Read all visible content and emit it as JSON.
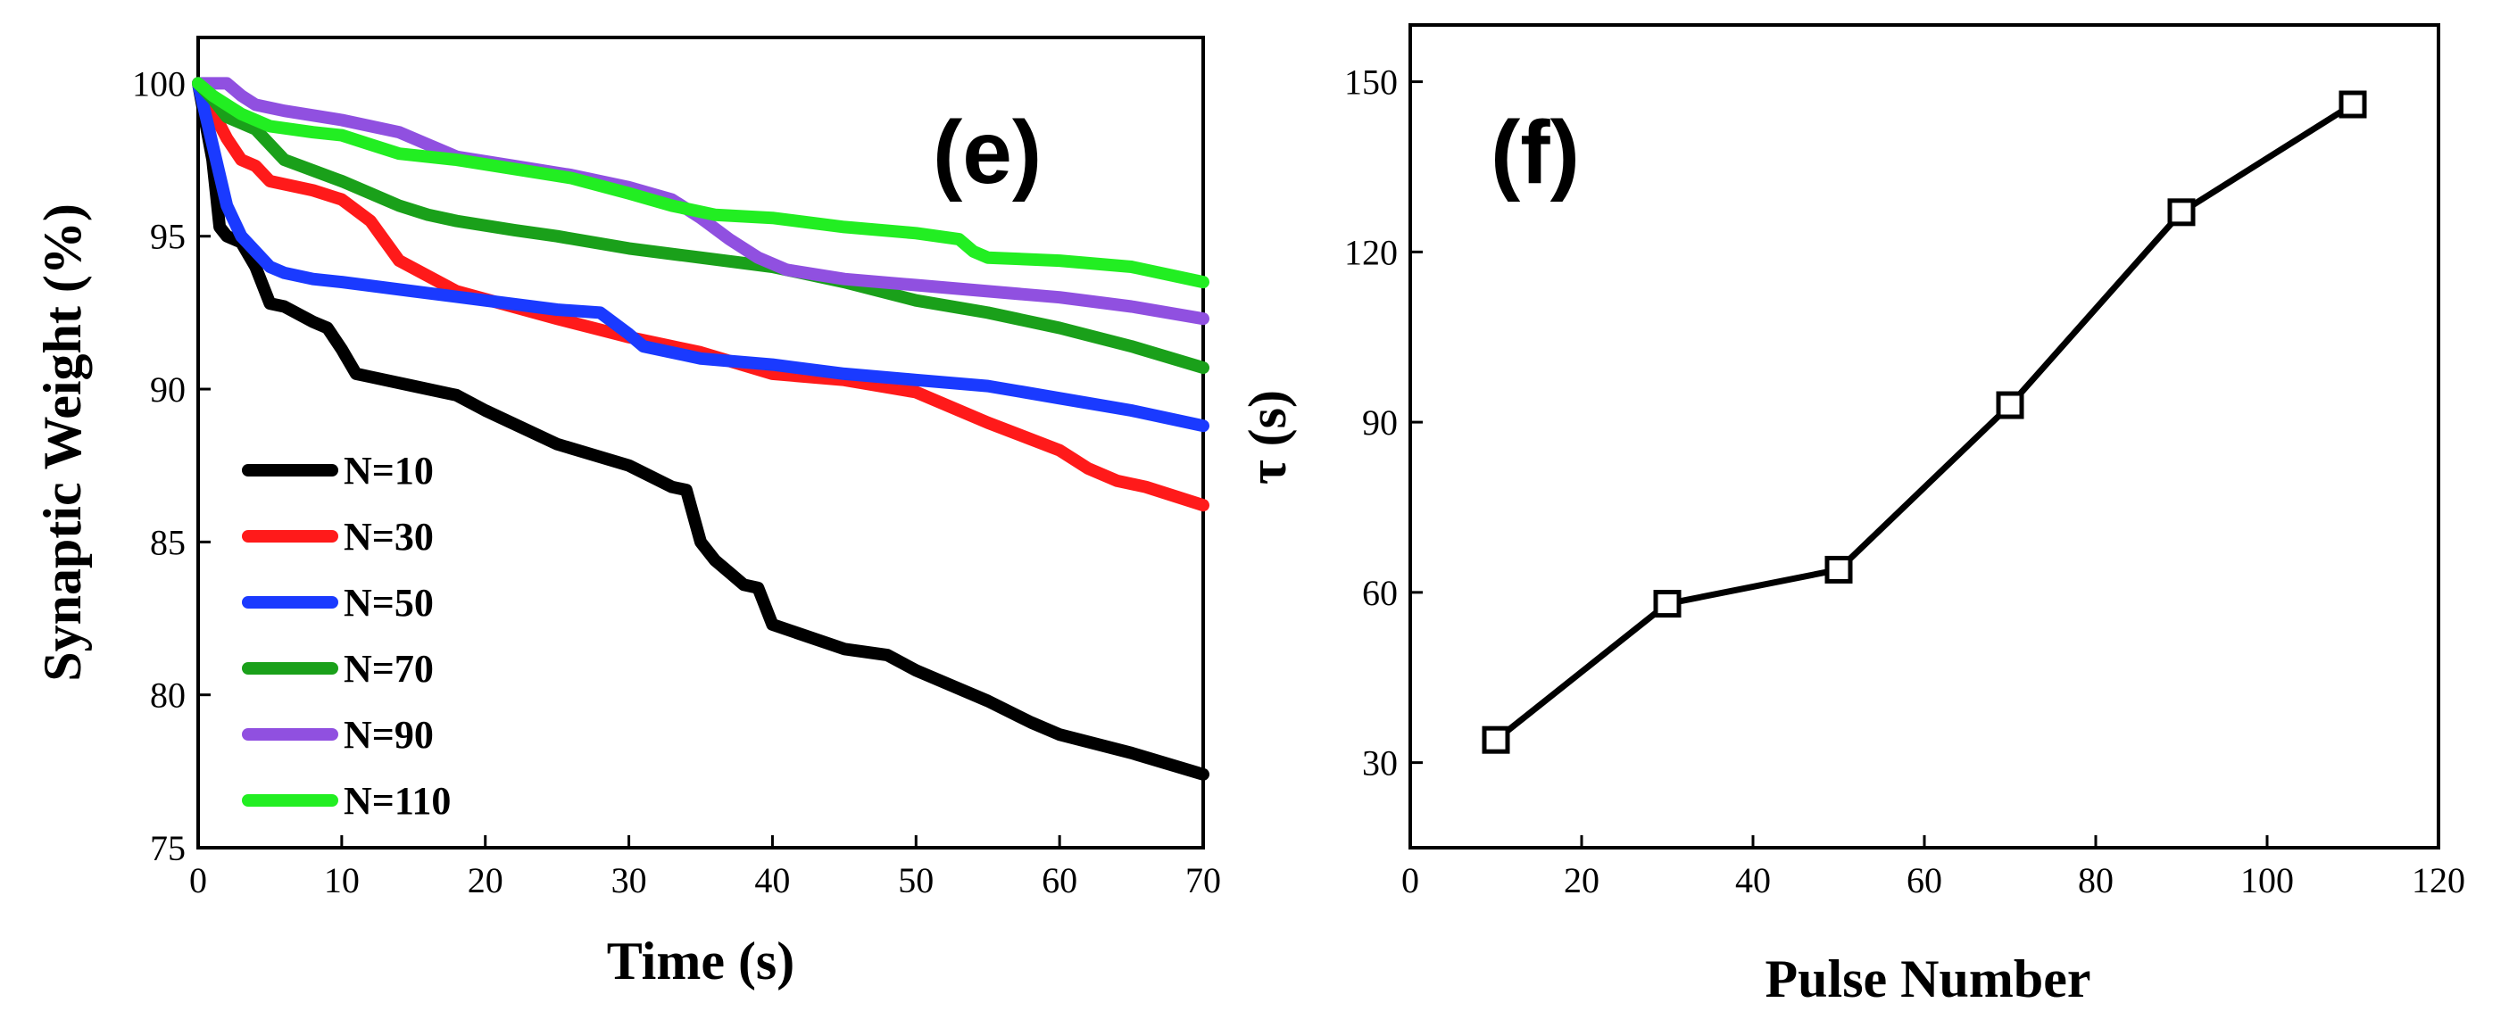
{
  "chart_data": [
    {
      "panel": "(e)",
      "type": "line",
      "title": "",
      "xlabel": "Time (s)",
      "ylabel": "Synaptic Weight (%)",
      "xlim": [
        0,
        70
      ],
      "ylim": [
        75,
        101.5
      ],
      "xticks": [
        0,
        10,
        20,
        30,
        40,
        50,
        60,
        70
      ],
      "yticks": [
        75,
        80,
        85,
        90,
        95,
        100
      ],
      "legend_position": "bottom-left",
      "series": [
        {
          "name": "N=10",
          "color": "#000000",
          "x": [
            0,
            1,
            1.5,
            2,
            3,
            4,
            5,
            6,
            8,
            9,
            10,
            11,
            12,
            15,
            18,
            20,
            25,
            30,
            33,
            34,
            35,
            36,
            37,
            38,
            39,
            40,
            45,
            48,
            50,
            55,
            58,
            60,
            65,
            70
          ],
          "y": [
            100,
            97.5,
            95.3,
            95,
            94.8,
            94,
            92.8,
            92.7,
            92.2,
            92,
            91.3,
            90.5,
            90.4,
            90.1,
            89.8,
            89.3,
            88.2,
            87.5,
            86.8,
            86.7,
            85,
            84.4,
            84,
            83.6,
            83.5,
            82.3,
            81.5,
            81.3,
            80.8,
            79.8,
            79.1,
            78.7,
            78.1,
            77.4
          ]
        },
        {
          "name": "N=30",
          "color": "#ff1a1a",
          "x": [
            0,
            2,
            3,
            4,
            5,
            8,
            10,
            12,
            14,
            18,
            25,
            30,
            35,
            40,
            45,
            50,
            55,
            60,
            62,
            64,
            66,
            70
          ],
          "y": [
            100,
            98.2,
            97.5,
            97.3,
            96.8,
            96.5,
            96.2,
            95.5,
            94.2,
            93.2,
            92.3,
            91.7,
            91.2,
            90.5,
            90.3,
            89.9,
            88.9,
            88,
            87.4,
            87,
            86.8,
            86.2
          ]
        },
        {
          "name": "N=50",
          "color": "#1a3aff",
          "x": [
            0,
            1,
            2,
            3,
            4,
            5,
            6,
            8,
            10,
            15,
            20,
            25,
            28,
            30,
            31,
            35,
            40,
            45,
            50,
            55,
            60,
            65,
            70
          ],
          "y": [
            100,
            98,
            96,
            95,
            94.5,
            94,
            93.8,
            93.6,
            93.5,
            93.2,
            92.9,
            92.6,
            92.5,
            91.8,
            91.4,
            91,
            90.8,
            90.5,
            90.3,
            90.1,
            89.7,
            89.3,
            88.8
          ]
        },
        {
          "name": "N=70",
          "color": "#1aa01a",
          "x": [
            0,
            1,
            2,
            4,
            6,
            10,
            12,
            14,
            16,
            18,
            22,
            25,
            30,
            35,
            40,
            45,
            50,
            55,
            60,
            65,
            70
          ],
          "y": [
            100,
            99.5,
            98.9,
            98.5,
            97.5,
            96.8,
            96.4,
            96,
            95.7,
            95.5,
            95.2,
            95,
            94.6,
            94.3,
            94,
            93.5,
            92.9,
            92.5,
            92,
            91.4,
            90.7
          ]
        },
        {
          "name": "N=90",
          "color": "#9050e0",
          "x": [
            0,
            2,
            3,
            4,
            6,
            10,
            14,
            16,
            18,
            22,
            26,
            30,
            33,
            35,
            37,
            39,
            41,
            45,
            50,
            55,
            60,
            65,
            70
          ],
          "y": [
            100,
            100,
            99.6,
            99.3,
            99.1,
            98.8,
            98.4,
            98,
            97.6,
            97.3,
            97,
            96.6,
            96.2,
            95.6,
            94.9,
            94.3,
            93.9,
            93.6,
            93.4,
            93.2,
            93,
            92.7,
            92.3
          ]
        },
        {
          "name": "N=110",
          "color": "#22ee22",
          "x": [
            0,
            1,
            3,
            5,
            8,
            10,
            12,
            14,
            18,
            22,
            26,
            30,
            33,
            36,
            40,
            45,
            50,
            53,
            54,
            55,
            60,
            65,
            70
          ],
          "y": [
            100,
            99.6,
            99,
            98.6,
            98.4,
            98.3,
            98,
            97.7,
            97.5,
            97.2,
            96.9,
            96.4,
            96,
            95.7,
            95.6,
            95.3,
            95.1,
            94.9,
            94.5,
            94.3,
            94.2,
            94,
            93.5
          ]
        }
      ]
    },
    {
      "panel": "(f)",
      "type": "line",
      "title": "",
      "xlabel": "Pulse Number",
      "ylabel": "τ (s)",
      "xlim": [
        0,
        120
      ],
      "ylim": [
        15,
        160
      ],
      "xticks": [
        0,
        20,
        40,
        60,
        80,
        100,
        120
      ],
      "yticks": [
        30,
        60,
        90,
        120,
        150
      ],
      "marker": "open-square",
      "series": [
        {
          "name": "tau",
          "color": "#000000",
          "x": [
            10,
            30,
            50,
            70,
            90,
            110
          ],
          "y": [
            34,
            58,
            64,
            93,
            127,
            146
          ]
        }
      ]
    }
  ]
}
